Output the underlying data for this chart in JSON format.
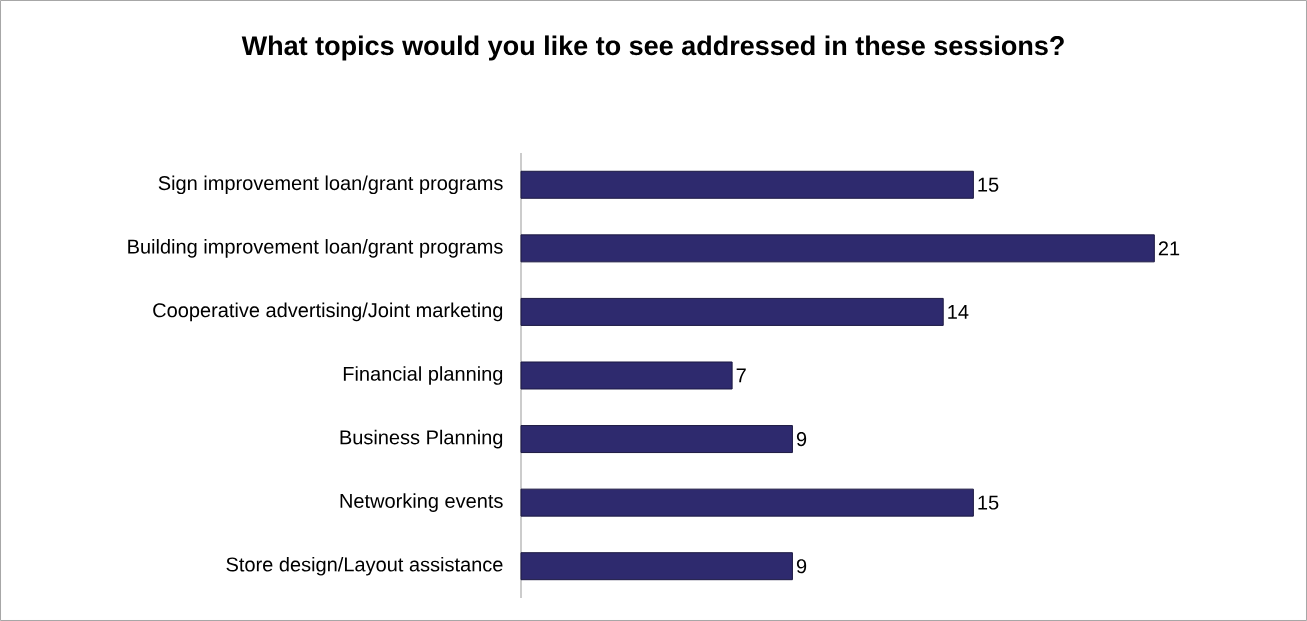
{
  "chart_data": {
    "type": "bar",
    "orientation": "horizontal",
    "title": "What topics would you like to see addressed in these sessions?",
    "categories": [
      "Sign improvement loan/grant programs",
      "Building improvement loan/grant programs",
      "Cooperative advertising/Joint marketing",
      "Financial planning",
      "Business Planning",
      "Networking events",
      "Store design/Layout assistance"
    ],
    "values": [
      15,
      21,
      14,
      7,
      9,
      15,
      9
    ],
    "color": "#2e2a6e",
    "data_labels": true
  }
}
